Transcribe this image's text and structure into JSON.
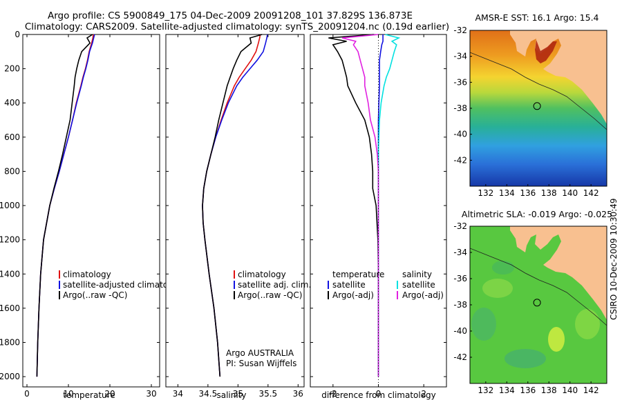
{
  "figure": {
    "title_line1": "Argo profile: CS 5900849_175 04-Dec-2009 20091208_101 37.829S 136.873E",
    "title_line2": "Climatology: CARS2009. Satellite-adjusted climatology: synTS_20091204.nc (0.19d earlier)",
    "side_label": "CSIRO 10-Dec-2009 10:30:49"
  },
  "colors": {
    "climatology": "#e01010",
    "satellite": "#1010e0",
    "argo": "#000000",
    "satellite_salinity": "#00e0e0",
    "argo_salinity_adj": "#e020e0",
    "land": "#f8c090"
  },
  "chart_data": [
    {
      "type": "line",
      "xlabel": "temperature",
      "ylabel": "",
      "xlim": [
        -1,
        32
      ],
      "ylim": [
        2060,
        0
      ],
      "xticks": [
        "0",
        "10",
        "20",
        "30"
      ],
      "yticks": [
        "0",
        "200",
        "400",
        "600",
        "800",
        "1000",
        "1200",
        "1400",
        "1600",
        "1800",
        "2000"
      ],
      "grid": false,
      "legend_position": "lower-left",
      "legend": [
        "climatology",
        "satellite-adjusted climatology",
        "Argo(..raw -QC)"
      ],
      "depth": [
        0,
        20,
        50,
        100,
        150,
        200,
        250,
        300,
        400,
        500,
        600,
        700,
        800,
        900,
        1000,
        1200,
        1400,
        1600,
        1800,
        2000
      ],
      "series": [
        {
          "name": "climatology",
          "values": [
            16.0,
            15.9,
            15.6,
            15.0,
            14.6,
            14.1,
            13.5,
            13.0,
            11.9,
            11.0,
            10.0,
            8.9,
            7.8,
            6.6,
            5.5,
            4.0,
            3.3,
            2.9,
            2.6,
            2.4
          ]
        },
        {
          "name": "satellite-adjusted climatology",
          "values": [
            16.3,
            16.1,
            15.8,
            15.1,
            14.7,
            14.2,
            13.6,
            13.1,
            12.0,
            11.0,
            10.0,
            8.9,
            7.8,
            6.6,
            5.5,
            4.0,
            3.3,
            2.9,
            2.6,
            2.4
          ]
        },
        {
          "name": "Argo(..raw -QC)",
          "values": [
            15.8,
            14.5,
            15.2,
            13.2,
            12.5,
            12.0,
            11.6,
            11.4,
            10.9,
            10.4,
            9.5,
            8.6,
            7.6,
            6.5,
            5.5,
            4.0,
            3.3,
            2.9,
            2.6,
            2.4
          ]
        }
      ],
      "annotations": []
    },
    {
      "type": "line",
      "xlabel": "salinity",
      "ylabel": "",
      "xlim": [
        33.8,
        36.1
      ],
      "ylim": [
        2060,
        0
      ],
      "xticks": [
        "34",
        "34.5",
        "35",
        "35.5",
        "36"
      ],
      "grid": false,
      "legend_position": "lower-right",
      "legend": [
        "climatology",
        "satellite adj. clim.",
        "Argo(..raw -QC)"
      ],
      "depth": [
        0,
        20,
        50,
        100,
        150,
        200,
        250,
        300,
        400,
        500,
        600,
        700,
        800,
        900,
        1000,
        1100,
        1200,
        1400,
        1600,
        1800,
        2000
      ],
      "series": [
        {
          "name": "climatology",
          "values": [
            35.37,
            35.36,
            35.34,
            35.3,
            35.22,
            35.12,
            35.02,
            34.94,
            34.82,
            34.72,
            34.63,
            34.55,
            34.48,
            34.43,
            34.41,
            34.42,
            34.45,
            34.52,
            34.6,
            34.66,
            34.7
          ]
        },
        {
          "name": "satellite adj. clim.",
          "values": [
            35.49,
            35.48,
            35.46,
            35.42,
            35.32,
            35.2,
            35.08,
            34.98,
            34.84,
            34.73,
            34.63,
            34.55,
            34.48,
            34.43,
            34.41,
            34.42,
            34.45,
            34.52,
            34.6,
            34.66,
            34.7
          ]
        },
        {
          "name": "Argo(..raw -QC)",
          "values": [
            35.4,
            35.2,
            35.22,
            35.05,
            34.98,
            34.92,
            34.87,
            34.82,
            34.75,
            34.68,
            34.62,
            34.55,
            34.48,
            34.43,
            34.41,
            34.42,
            34.45,
            34.52,
            34.6,
            34.66,
            34.7
          ]
        }
      ],
      "annotations": [
        "Argo AUSTRALIA",
        "PI: Susan Wijffels"
      ]
    },
    {
      "type": "line",
      "xlabel": "difference from climatology",
      "ylabel": "",
      "xlim": [
        -3,
        3
      ],
      "ylim": [
        2060,
        0
      ],
      "xticks": [
        "-2",
        "0",
        "2"
      ],
      "grid": false,
      "legend_position": "lower",
      "legend_titles": [
        "temperature",
        "salinity"
      ],
      "legend": [
        "satellite",
        "Argo(-adj)",
        "satellite",
        "Argo(-adj)"
      ],
      "depth": [
        0,
        20,
        40,
        60,
        100,
        150,
        200,
        250,
        300,
        400,
        500,
        600,
        700,
        800,
        900,
        1000,
        1200,
        1400,
        1600,
        1800,
        2000
      ],
      "series": [
        {
          "name": "temperature satellite",
          "values": [
            0.2,
            0.2,
            0.2,
            0.15,
            0.1,
            0.05,
            0.05,
            0.05,
            0.05,
            0.02,
            0.0,
            0.0,
            0.0,
            0.0,
            0.0,
            0.0,
            0.0,
            0.0,
            0.0,
            0.0,
            0.0
          ]
        },
        {
          "name": "temperature Argo(-adj)",
          "values": [
            -0.2,
            -2.2,
            -1.4,
            -2.0,
            -1.8,
            -1.6,
            -1.5,
            -1.4,
            -1.35,
            -1.0,
            -0.6,
            -0.4,
            -0.3,
            -0.25,
            -0.25,
            -0.1,
            -0.02,
            0.0,
            0.0,
            0.0,
            0.0
          ]
        },
        {
          "name": "salinity satellite",
          "values": [
            0.3,
            0.9,
            0.6,
            0.8,
            0.7,
            0.6,
            0.5,
            0.35,
            0.25,
            0.12,
            0.05,
            0.02,
            0.0,
            0.0,
            0.0,
            0.0,
            0.0,
            0.0,
            0.0,
            0.0,
            0.0
          ]
        },
        {
          "name": "salinity Argo(-adj)",
          "values": [
            0.0,
            -1.6,
            -1.0,
            -1.1,
            -0.9,
            -0.8,
            -0.7,
            -0.6,
            -0.6,
            -0.45,
            -0.35,
            -0.15,
            -0.05,
            0.0,
            0.0,
            0.0,
            0.0,
            0.0,
            0.0,
            0.0,
            0.0
          ]
        }
      ],
      "annotations": []
    },
    {
      "type": "heatmap",
      "title": "AMSR-E SST: 16.1 Argo: 15.4",
      "xticks": [
        "132",
        "134",
        "136",
        "138",
        "140",
        "142"
      ],
      "yticks": [
        "-32",
        "-34",
        "-36",
        "-38",
        "-40",
        "-42"
      ],
      "xlim": [
        130.5,
        143.5
      ],
      "ylim": [
        -44,
        -32
      ],
      "marker": {
        "lon": 136.873,
        "lat": -37.829
      }
    },
    {
      "type": "heatmap",
      "title": "Altimetric SLA: -0.019 Argo: -0.025",
      "xticks": [
        "132",
        "134",
        "136",
        "138",
        "140",
        "142"
      ],
      "yticks": [
        "-32",
        "-34",
        "-36",
        "-38",
        "-40",
        "-42"
      ],
      "xlim": [
        130.5,
        143.5
      ],
      "ylim": [
        -44,
        -32
      ],
      "marker": {
        "lon": 136.873,
        "lat": -37.829
      }
    }
  ]
}
